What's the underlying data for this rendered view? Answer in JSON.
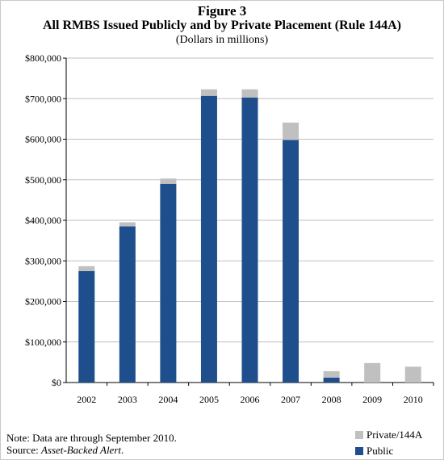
{
  "figure_label": "Figure 3",
  "chart_data": {
    "type": "bar",
    "stacked": true,
    "title": "All RMBS Issued Publicly and by Private Placement (Rule 144A)",
    "subtitle": "(Dollars in millions)",
    "categories": [
      "2002",
      "2003",
      "2004",
      "2005",
      "2006",
      "2007",
      "2008",
      "2009",
      "2010"
    ],
    "series": [
      {
        "name": "Public",
        "color": "#1f4e8c",
        "values": [
          275000,
          385000,
          490000,
          707000,
          703000,
          598000,
          12000,
          0,
          0
        ]
      },
      {
        "name": "Private/144A",
        "color": "#c0c0c0",
        "values": [
          12000,
          10000,
          13000,
          16000,
          20000,
          43000,
          16000,
          48000,
          39000
        ]
      }
    ],
    "ylim": [
      0,
      800000
    ],
    "yticks": [
      "$0",
      "$100,000",
      "$200,000",
      "$300,000",
      "$400,000",
      "$500,000",
      "$600,000",
      "$700,000",
      "$800,000"
    ],
    "grid": true,
    "legend": "bottom-right"
  },
  "note": {
    "line1": "Note:  Data are through September 2010.",
    "source_prefix": "Source:  ",
    "source_name": "Asset-Backed Alert",
    "source_suffix": "."
  }
}
